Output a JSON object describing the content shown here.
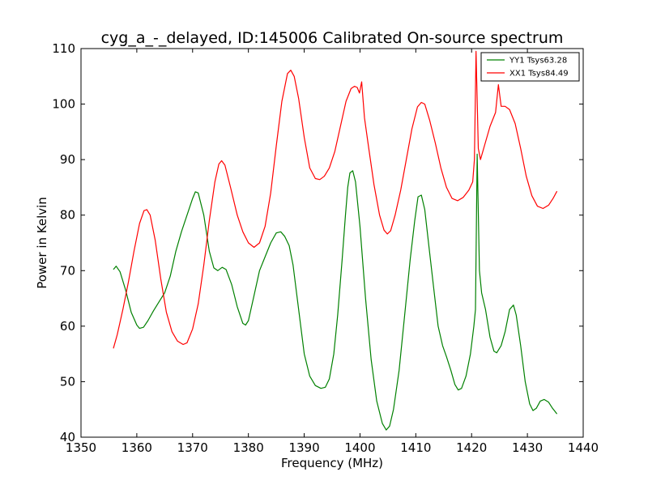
{
  "chart_data": {
    "type": "line",
    "title": "cyg_a_-_delayed, ID:145006 Calibrated On-source spectrum",
    "xlabel": "Frequency (MHz)",
    "ylabel": "Power in Kelvin",
    "xlim": [
      1350,
      1440
    ],
    "ylim": [
      40,
      110
    ],
    "xticks": [
      1350,
      1360,
      1370,
      1380,
      1390,
      1400,
      1410,
      1420,
      1430,
      1440
    ],
    "yticks": [
      40,
      50,
      60,
      70,
      80,
      90,
      100,
      110
    ],
    "legend_position": "top-right",
    "series": [
      {
        "name": "YY1 Tsys63.28",
        "color": "#008000",
        "points": [
          [
            1355.8,
            70.2
          ],
          [
            1356.3,
            70.8
          ],
          [
            1357.0,
            69.8
          ],
          [
            1358.0,
            66.5
          ],
          [
            1359.0,
            62.5
          ],
          [
            1360.0,
            60.2
          ],
          [
            1360.5,
            59.6
          ],
          [
            1361.2,
            59.8
          ],
          [
            1362.0,
            61.0
          ],
          [
            1363.0,
            62.8
          ],
          [
            1364.0,
            64.4
          ],
          [
            1365.0,
            66.0
          ],
          [
            1366.0,
            69.0
          ],
          [
            1367.0,
            73.5
          ],
          [
            1368.0,
            77.0
          ],
          [
            1369.0,
            80.0
          ],
          [
            1370.0,
            83.0
          ],
          [
            1370.5,
            84.2
          ],
          [
            1371.0,
            84.0
          ],
          [
            1372.0,
            80.0
          ],
          [
            1373.0,
            73.5
          ],
          [
            1373.8,
            70.5
          ],
          [
            1374.5,
            70.0
          ],
          [
            1375.3,
            70.6
          ],
          [
            1376.0,
            70.2
          ],
          [
            1377.0,
            67.5
          ],
          [
            1378.0,
            63.5
          ],
          [
            1379.0,
            60.5
          ],
          [
            1379.5,
            60.2
          ],
          [
            1380.0,
            61.0
          ],
          [
            1381.0,
            65.5
          ],
          [
            1382.0,
            70.0
          ],
          [
            1383.0,
            72.5
          ],
          [
            1384.0,
            75.0
          ],
          [
            1385.0,
            76.8
          ],
          [
            1385.8,
            77.0
          ],
          [
            1386.5,
            76.2
          ],
          [
            1387.3,
            74.5
          ],
          [
            1388.0,
            71.0
          ],
          [
            1389.0,
            63.0
          ],
          [
            1390.0,
            55.0
          ],
          [
            1391.0,
            51.0
          ],
          [
            1392.0,
            49.3
          ],
          [
            1393.0,
            48.8
          ],
          [
            1393.8,
            49.0
          ],
          [
            1394.5,
            50.5
          ],
          [
            1395.3,
            55.0
          ],
          [
            1396.0,
            62.0
          ],
          [
            1396.8,
            72.0
          ],
          [
            1397.4,
            80.0
          ],
          [
            1397.8,
            85.0
          ],
          [
            1398.2,
            87.6
          ],
          [
            1398.7,
            88.0
          ],
          [
            1399.2,
            86.0
          ],
          [
            1400.0,
            78.0
          ],
          [
            1401.0,
            65.0
          ],
          [
            1402.0,
            54.0
          ],
          [
            1403.0,
            46.5
          ],
          [
            1404.0,
            42.5
          ],
          [
            1404.7,
            41.3
          ],
          [
            1405.3,
            42.0
          ],
          [
            1406.0,
            45.0
          ],
          [
            1407.0,
            52.0
          ],
          [
            1408.0,
            62.0
          ],
          [
            1409.0,
            72.0
          ],
          [
            1409.8,
            79.0
          ],
          [
            1410.4,
            83.3
          ],
          [
            1411.0,
            83.6
          ],
          [
            1411.6,
            81.0
          ],
          [
            1412.5,
            73.0
          ],
          [
            1413.3,
            66.0
          ],
          [
            1414.0,
            60.0
          ],
          [
            1414.8,
            56.5
          ],
          [
            1415.5,
            54.5
          ],
          [
            1416.3,
            52.0
          ],
          [
            1417.0,
            49.5
          ],
          [
            1417.6,
            48.5
          ],
          [
            1418.2,
            48.8
          ],
          [
            1419.0,
            51.0
          ],
          [
            1419.8,
            55.0
          ],
          [
            1420.4,
            60.0
          ],
          [
            1420.7,
            63.0
          ],
          [
            1421.0,
            91.0
          ],
          [
            1421.4,
            70.0
          ],
          [
            1421.8,
            66.0
          ],
          [
            1422.5,
            63.0
          ],
          [
            1423.3,
            58.0
          ],
          [
            1424.0,
            55.5
          ],
          [
            1424.5,
            55.2
          ],
          [
            1425.3,
            56.5
          ],
          [
            1426.0,
            59.0
          ],
          [
            1426.8,
            63.0
          ],
          [
            1427.5,
            63.8
          ],
          [
            1428.0,
            62.0
          ],
          [
            1428.8,
            56.5
          ],
          [
            1429.6,
            50.0
          ],
          [
            1430.4,
            46.0
          ],
          [
            1431.0,
            44.8
          ],
          [
            1431.6,
            45.2
          ],
          [
            1432.3,
            46.5
          ],
          [
            1433.0,
            46.8
          ],
          [
            1433.8,
            46.3
          ],
          [
            1434.5,
            45.2
          ],
          [
            1435.3,
            44.2
          ]
        ]
      },
      {
        "name": "XX1 Tsys84.49",
        "color": "#ff0000",
        "points": [
          [
            1355.8,
            56.0
          ],
          [
            1356.5,
            58.5
          ],
          [
            1357.5,
            63.0
          ],
          [
            1358.5,
            68.0
          ],
          [
            1359.5,
            73.5
          ],
          [
            1360.5,
            78.5
          ],
          [
            1361.3,
            80.8
          ],
          [
            1361.8,
            81.0
          ],
          [
            1362.4,
            80.0
          ],
          [
            1363.3,
            75.5
          ],
          [
            1364.3,
            68.5
          ],
          [
            1365.3,
            62.5
          ],
          [
            1366.3,
            59.0
          ],
          [
            1367.3,
            57.3
          ],
          [
            1368.3,
            56.7
          ],
          [
            1369.0,
            57.0
          ],
          [
            1370.0,
            59.5
          ],
          [
            1371.0,
            64.0
          ],
          [
            1372.0,
            71.0
          ],
          [
            1373.0,
            79.0
          ],
          [
            1374.0,
            86.0
          ],
          [
            1374.7,
            89.2
          ],
          [
            1375.2,
            89.8
          ],
          [
            1375.8,
            89.0
          ],
          [
            1376.8,
            85.0
          ],
          [
            1378.0,
            80.0
          ],
          [
            1379.0,
            77.0
          ],
          [
            1380.0,
            75.0
          ],
          [
            1381.0,
            74.2
          ],
          [
            1382.0,
            75.0
          ],
          [
            1383.0,
            78.0
          ],
          [
            1384.0,
            84.0
          ],
          [
            1385.0,
            92.5
          ],
          [
            1386.0,
            100.5
          ],
          [
            1387.0,
            105.5
          ],
          [
            1387.6,
            106.1
          ],
          [
            1388.2,
            105.0
          ],
          [
            1389.0,
            101.0
          ],
          [
            1390.0,
            94.0
          ],
          [
            1391.0,
            88.5
          ],
          [
            1392.0,
            86.6
          ],
          [
            1392.8,
            86.4
          ],
          [
            1393.6,
            87.0
          ],
          [
            1394.5,
            88.5
          ],
          [
            1395.5,
            91.5
          ],
          [
            1396.5,
            96.0
          ],
          [
            1397.5,
            100.5
          ],
          [
            1398.4,
            102.8
          ],
          [
            1399.0,
            103.2
          ],
          [
            1399.5,
            103.0
          ],
          [
            1399.9,
            102.0
          ],
          [
            1400.3,
            104.0
          ],
          [
            1400.8,
            97.5
          ],
          [
            1401.5,
            92.5
          ],
          [
            1402.5,
            85.5
          ],
          [
            1403.5,
            80.0
          ],
          [
            1404.3,
            77.3
          ],
          [
            1404.9,
            76.6
          ],
          [
            1405.5,
            77.2
          ],
          [
            1406.3,
            80.0
          ],
          [
            1407.3,
            84.5
          ],
          [
            1408.3,
            90.0
          ],
          [
            1409.3,
            95.5
          ],
          [
            1410.3,
            99.5
          ],
          [
            1411.0,
            100.3
          ],
          [
            1411.6,
            100.0
          ],
          [
            1412.5,
            97.0
          ],
          [
            1413.5,
            93.0
          ],
          [
            1414.5,
            88.5
          ],
          [
            1415.5,
            85.0
          ],
          [
            1416.5,
            83.0
          ],
          [
            1417.5,
            82.6
          ],
          [
            1418.5,
            83.2
          ],
          [
            1419.5,
            84.5
          ],
          [
            1420.2,
            86.0
          ],
          [
            1420.5,
            90.0
          ],
          [
            1420.8,
            109.5
          ],
          [
            1421.2,
            92.0
          ],
          [
            1421.6,
            90.0
          ],
          [
            1422.3,
            92.5
          ],
          [
            1423.3,
            96.0
          ],
          [
            1424.3,
            98.5
          ],
          [
            1424.8,
            103.5
          ],
          [
            1425.3,
            99.6
          ],
          [
            1426.0,
            99.6
          ],
          [
            1426.8,
            99.0
          ],
          [
            1427.8,
            96.5
          ],
          [
            1428.8,
            92.0
          ],
          [
            1429.8,
            87.0
          ],
          [
            1430.8,
            83.5
          ],
          [
            1431.8,
            81.6
          ],
          [
            1432.8,
            81.2
          ],
          [
            1433.8,
            81.8
          ],
          [
            1434.6,
            83.0
          ],
          [
            1435.3,
            84.3
          ]
        ]
      }
    ]
  }
}
